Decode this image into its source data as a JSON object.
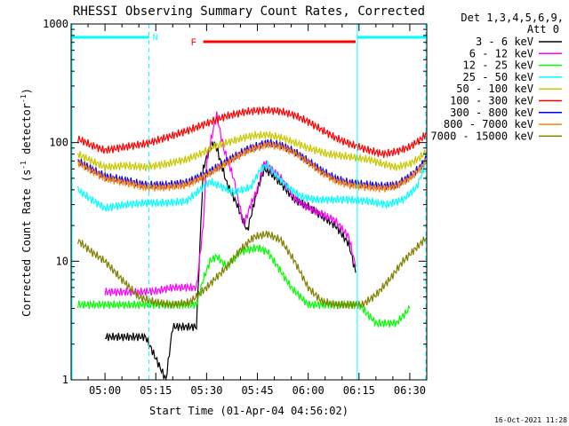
{
  "chart_data": {
    "type": "line",
    "title": "RHESSI Observing Summary Count Rates, Corrected",
    "xlabel": "Start Time (01-Apr-04 04:56:02)",
    "ylabel_main": "Corrected Count Rate (s",
    "ylabel_sup1": "-1",
    "ylabel_mid": " detector",
    "ylabel_sup2": "-1",
    "ylabel_end": ")",
    "y_scale": "log",
    "ylim": [
      1,
      1000
    ],
    "xlim_minutes": [
      290,
      395
    ],
    "x_ticks": [
      {
        "t": 300,
        "label": "05:00"
      },
      {
        "t": 315,
        "label": "05:15"
      },
      {
        "t": 330,
        "label": "05:30"
      },
      {
        "t": 345,
        "label": "05:45"
      },
      {
        "t": 360,
        "label": "06:00"
      },
      {
        "t": 375,
        "label": "06:15"
      },
      {
        "t": 390,
        "label": "06:30"
      }
    ],
    "y_ticks": [
      {
        "v": 1,
        "label": "1"
      },
      {
        "v": 10,
        "label": "10"
      },
      {
        "v": 100,
        "label": "100"
      },
      {
        "v": 1000,
        "label": "1000"
      }
    ],
    "legend": {
      "header1": "Det 1,3,4,5,6,9,",
      "header2": "Att 0",
      "placement": "outside-right"
    },
    "series": [
      {
        "name": "3 - 6 keV",
        "color": "#000000",
        "points": [
          [
            300,
            2.3
          ],
          [
            312,
            2.3
          ],
          [
            318,
            1
          ],
          [
            320,
            2.8
          ],
          [
            327,
            2.8
          ],
          [
            329,
            60
          ],
          [
            330,
            75
          ],
          [
            332,
            100
          ],
          [
            333,
            90
          ],
          [
            336,
            45
          ],
          [
            339,
            30
          ],
          [
            342,
            18
          ],
          [
            345,
            40
          ],
          [
            347,
            60
          ],
          [
            349,
            55
          ],
          [
            352,
            45
          ],
          [
            356,
            33
          ],
          [
            360,
            29
          ],
          [
            364,
            24
          ],
          [
            368,
            20
          ],
          [
            372,
            14
          ],
          [
            374,
            8
          ]
        ]
      },
      {
        "name": "6 - 12 keV",
        "color": "#ff00ff",
        "points": [
          [
            300,
            5.5
          ],
          [
            310,
            5.5
          ],
          [
            315,
            5.6
          ],
          [
            320,
            6
          ],
          [
            327,
            6
          ],
          [
            329,
            20
          ],
          [
            330,
            70
          ],
          [
            332,
            130
          ],
          [
            333,
            170
          ],
          [
            335,
            90
          ],
          [
            338,
            50
          ],
          [
            341,
            20
          ],
          [
            343,
            30
          ],
          [
            345,
            40
          ],
          [
            347,
            68
          ],
          [
            349,
            60
          ],
          [
            352,
            50
          ],
          [
            356,
            34
          ],
          [
            360,
            28
          ],
          [
            364,
            25
          ],
          [
            368,
            22
          ],
          [
            372,
            16
          ],
          [
            374,
            9
          ]
        ]
      },
      {
        "name": "12 - 25 keV",
        "color": "#00ff00",
        "points": [
          [
            292,
            4.3
          ],
          [
            297,
            4.3
          ],
          [
            300,
            4.3
          ],
          [
            310,
            4.3
          ],
          [
            320,
            4.3
          ],
          [
            327,
            4.3
          ],
          [
            329,
            7
          ],
          [
            331,
            10
          ],
          [
            333,
            11
          ],
          [
            336,
            9
          ],
          [
            340,
            12
          ],
          [
            345,
            13
          ],
          [
            348,
            12
          ],
          [
            351,
            9
          ],
          [
            355,
            6
          ],
          [
            360,
            4.3
          ],
          [
            370,
            4.3
          ],
          [
            375,
            4.3
          ],
          [
            380,
            3
          ],
          [
            386,
            3
          ],
          [
            390,
            4
          ]
        ]
      },
      {
        "name": "25 - 50 keV",
        "color": "#00ffff",
        "points": [
          [
            292,
            40
          ],
          [
            296,
            33
          ],
          [
            300,
            28
          ],
          [
            306,
            30
          ],
          [
            312,
            31
          ],
          [
            318,
            31
          ],
          [
            324,
            32
          ],
          [
            328,
            40
          ],
          [
            331,
            47
          ],
          [
            334,
            43
          ],
          [
            338,
            38
          ],
          [
            343,
            42
          ],
          [
            346,
            60
          ],
          [
            348,
            65
          ],
          [
            350,
            55
          ],
          [
            354,
            42
          ],
          [
            358,
            35
          ],
          [
            362,
            33
          ],
          [
            366,
            33
          ],
          [
            372,
            33
          ],
          [
            378,
            32
          ],
          [
            383,
            30
          ],
          [
            388,
            33
          ],
          [
            392,
            42
          ],
          [
            395,
            70
          ]
        ]
      },
      {
        "name": "50 - 100 keV",
        "color": "#c8c800",
        "points": [
          [
            292,
            80
          ],
          [
            296,
            70
          ],
          [
            300,
            62
          ],
          [
            306,
            64
          ],
          [
            312,
            62
          ],
          [
            318,
            66
          ],
          [
            324,
            72
          ],
          [
            328,
            80
          ],
          [
            332,
            92
          ],
          [
            336,
            100
          ],
          [
            340,
            108
          ],
          [
            344,
            115
          ],
          [
            348,
            116
          ],
          [
            352,
            110
          ],
          [
            356,
            100
          ],
          [
            360,
            90
          ],
          [
            366,
            80
          ],
          [
            372,
            76
          ],
          [
            378,
            72
          ],
          [
            382,
            66
          ],
          [
            386,
            62
          ],
          [
            390,
            66
          ],
          [
            393,
            75
          ],
          [
            395,
            85
          ]
        ]
      },
      {
        "name": "100 - 300 keV",
        "color": "#ff0000",
        "points": [
          [
            292,
            108
          ],
          [
            296,
            95
          ],
          [
            300,
            86
          ],
          [
            306,
            92
          ],
          [
            312,
            98
          ],
          [
            318,
            110
          ],
          [
            324,
            125
          ],
          [
            330,
            145
          ],
          [
            336,
            168
          ],
          [
            342,
            183
          ],
          [
            348,
            188
          ],
          [
            352,
            183
          ],
          [
            356,
            170
          ],
          [
            360,
            150
          ],
          [
            364,
            128
          ],
          [
            368,
            110
          ],
          [
            372,
            98
          ],
          [
            378,
            86
          ],
          [
            382,
            80
          ],
          [
            386,
            84
          ],
          [
            390,
            92
          ],
          [
            393,
            105
          ],
          [
            395,
            120
          ]
        ]
      },
      {
        "name": "300 - 800 keV",
        "color": "#0000ff",
        "points": [
          [
            292,
            70
          ],
          [
            296,
            60
          ],
          [
            300,
            52
          ],
          [
            306,
            48
          ],
          [
            312,
            44
          ],
          [
            318,
            44
          ],
          [
            324,
            46
          ],
          [
            330,
            55
          ],
          [
            336,
            70
          ],
          [
            342,
            88
          ],
          [
            348,
            100
          ],
          [
            352,
            95
          ],
          [
            356,
            84
          ],
          [
            360,
            70
          ],
          [
            364,
            58
          ],
          [
            368,
            50
          ],
          [
            372,
            46
          ],
          [
            378,
            44
          ],
          [
            382,
            43
          ],
          [
            386,
            44
          ],
          [
            390,
            52
          ],
          [
            393,
            62
          ],
          [
            395,
            75
          ]
        ]
      },
      {
        "name": "800 - 7000 keV",
        "color": "#ff8000",
        "points": [
          [
            292,
            68
          ],
          [
            296,
            58
          ],
          [
            300,
            50
          ],
          [
            306,
            46
          ],
          [
            312,
            42
          ],
          [
            318,
            42
          ],
          [
            324,
            44
          ],
          [
            330,
            53
          ],
          [
            336,
            68
          ],
          [
            342,
            85
          ],
          [
            348,
            97
          ],
          [
            352,
            92
          ],
          [
            356,
            82
          ],
          [
            360,
            68
          ],
          [
            364,
            56
          ],
          [
            368,
            48
          ],
          [
            372,
            44
          ],
          [
            378,
            42
          ],
          [
            382,
            41
          ],
          [
            386,
            43
          ],
          [
            390,
            50
          ],
          [
            393,
            60
          ],
          [
            395,
            72
          ]
        ]
      },
      {
        "name": "7000 - 15000 keV",
        "color": "#808000",
        "points": [
          [
            292,
            15
          ],
          [
            296,
            12
          ],
          [
            300,
            10
          ],
          [
            305,
            7
          ],
          [
            310,
            5
          ],
          [
            315,
            4.5
          ],
          [
            320,
            4.3
          ],
          [
            325,
            4.5
          ],
          [
            330,
            6
          ],
          [
            336,
            9
          ],
          [
            340,
            12.5
          ],
          [
            344,
            16
          ],
          [
            348,
            17
          ],
          [
            352,
            15
          ],
          [
            356,
            10
          ],
          [
            360,
            6
          ],
          [
            364,
            4.6
          ],
          [
            368,
            4.3
          ],
          [
            372,
            4.3
          ],
          [
            376,
            4.3
          ],
          [
            380,
            5.2
          ],
          [
            384,
            7
          ],
          [
            388,
            10
          ],
          [
            392,
            13
          ],
          [
            395,
            16
          ]
        ]
      }
    ],
    "annotations": {
      "night_label": "N",
      "flare_label": "F",
      "night_color": "#00ffff",
      "flare_color": "#ff0000",
      "night_start": 290,
      "night_end": 313,
      "saa_start": 374.5,
      "saa_end": 395,
      "flare_start": 329,
      "flare_end": 374,
      "bar_level": 800
    },
    "grid": false
  },
  "footer": {
    "timestamp": "16-Oct-2021 11:28"
  }
}
